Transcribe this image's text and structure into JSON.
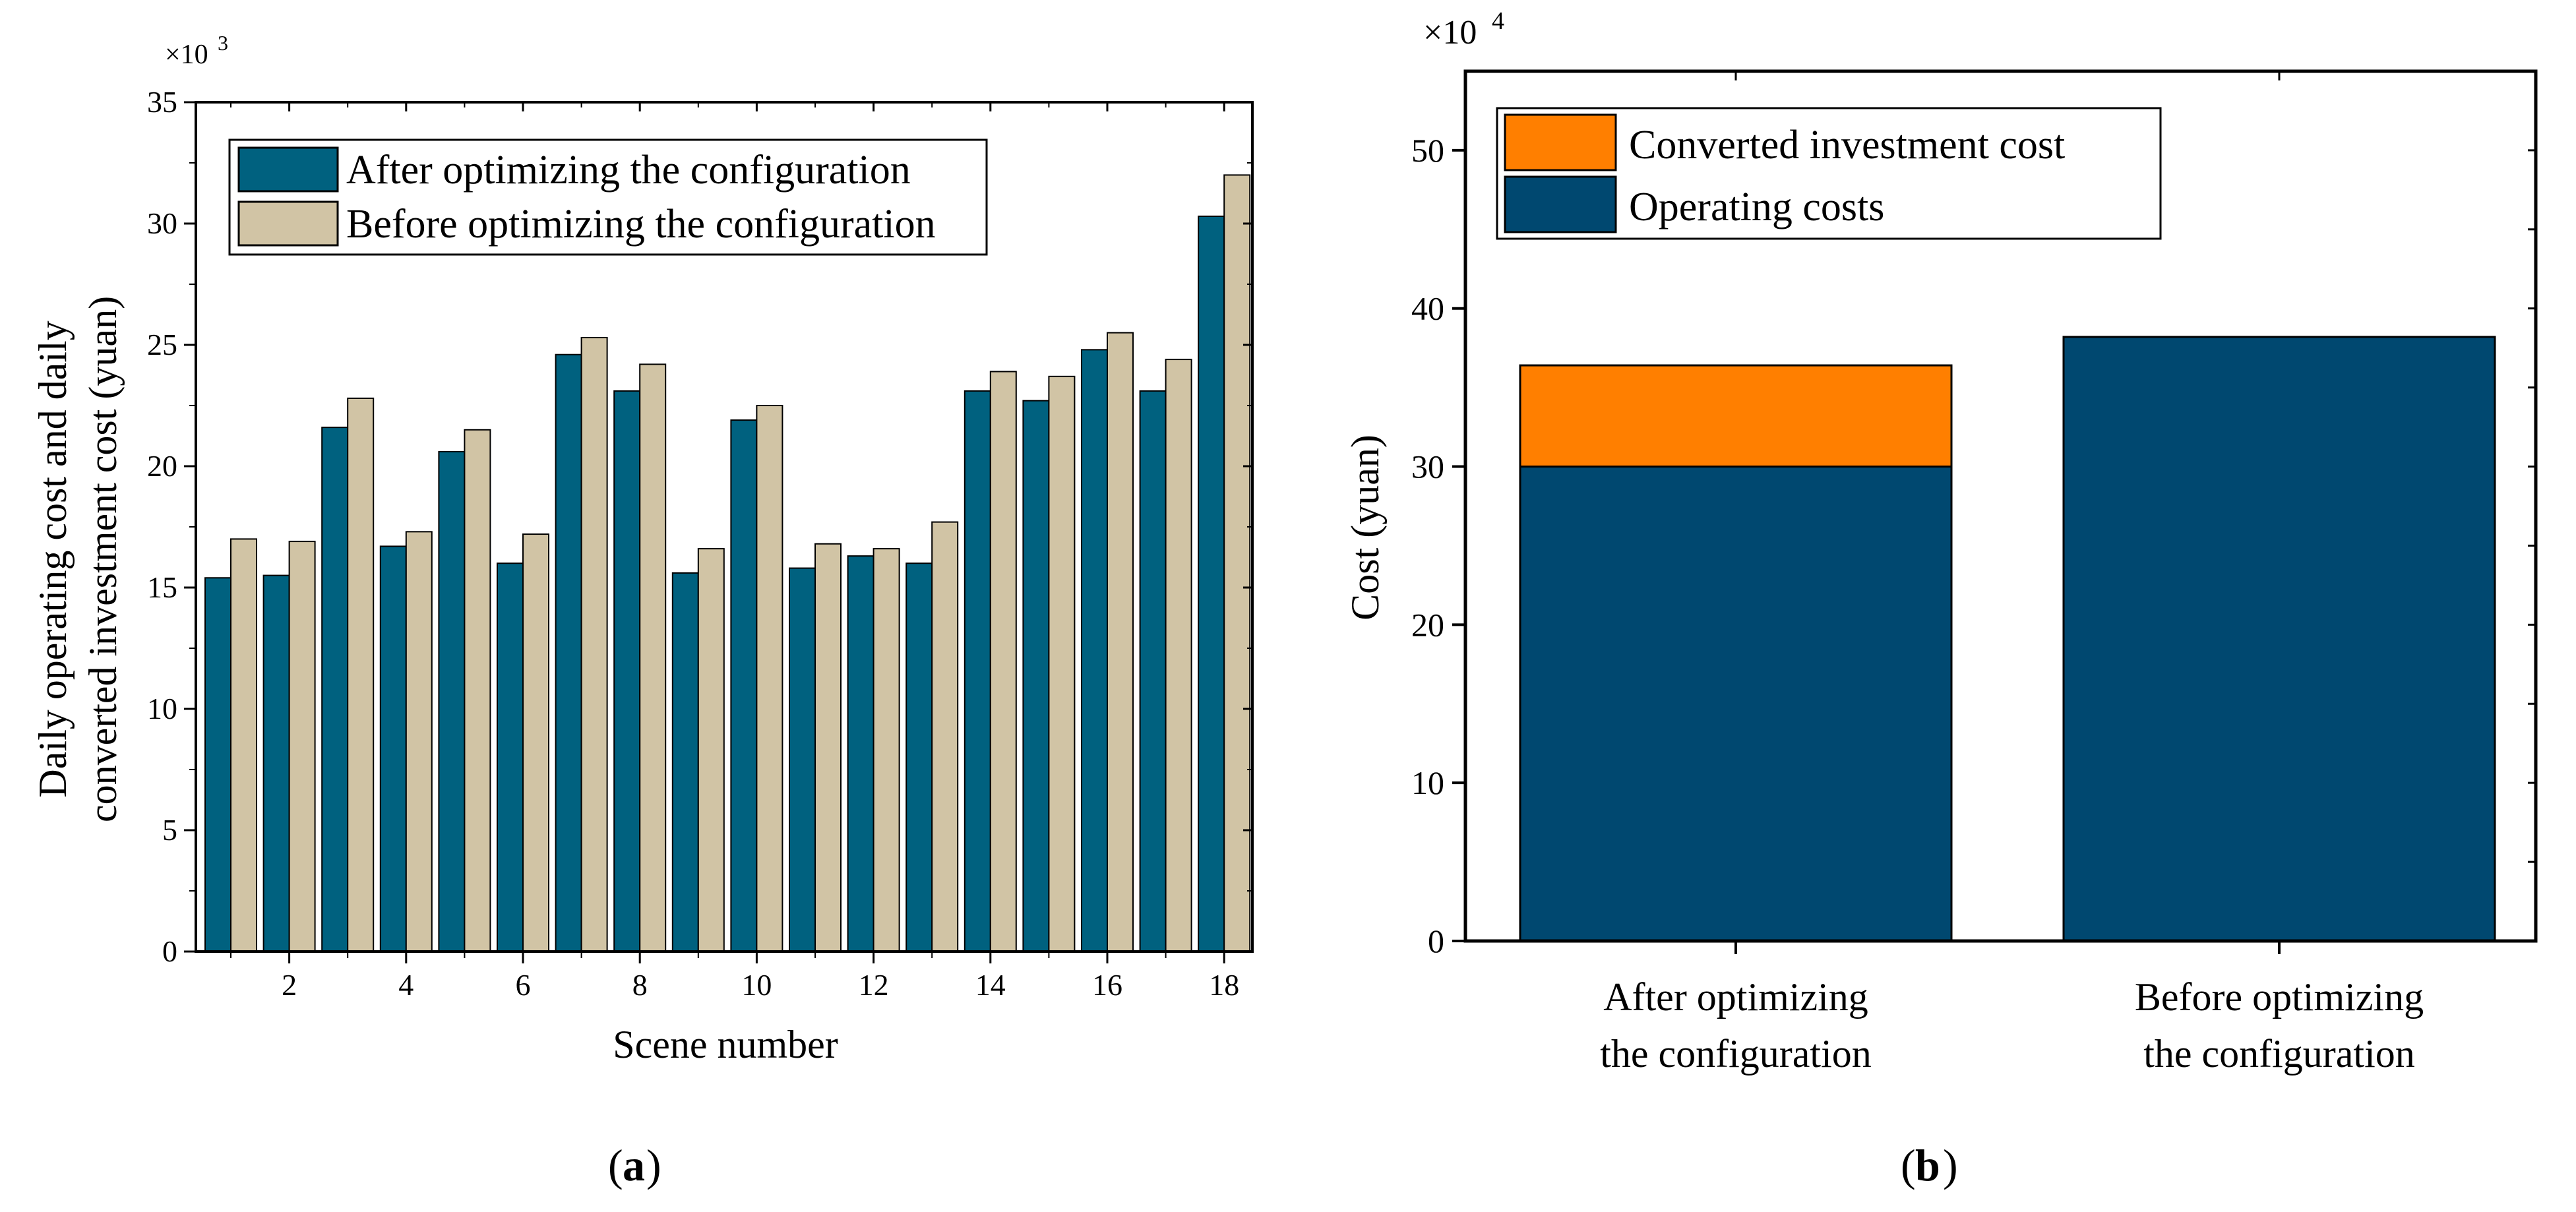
{
  "colors": {
    "after_a": "#00617f",
    "before_a": "#d1c4a5",
    "operating": "#004870",
    "investment": "#ff7f00"
  },
  "chart_data": [
    {
      "type": "bar",
      "panel_label": "a",
      "categories": [
        1,
        2,
        3,
        4,
        5,
        6,
        7,
        8,
        9,
        10,
        11,
        12,
        13,
        14,
        15,
        16,
        17,
        18
      ],
      "series": [
        {
          "name": "After optimizing the configuration",
          "values": [
            15.4,
            15.5,
            21.6,
            16.7,
            20.6,
            16.0,
            24.6,
            23.1,
            15.6,
            21.9,
            15.8,
            16.3,
            16.0,
            23.1,
            22.7,
            24.8,
            23.1,
            30.3
          ]
        },
        {
          "name": "Before optimizing the configuration",
          "values": [
            17.0,
            16.9,
            22.8,
            17.3,
            21.5,
            17.2,
            25.3,
            24.2,
            16.6,
            22.5,
            16.8,
            16.6,
            17.7,
            23.9,
            23.7,
            25.5,
            24.4,
            32.0
          ]
        }
      ],
      "xlabel": "Scene number",
      "ylabel_lines": [
        "Daily operating cost and daily",
        "converted investment cost (yuan)"
      ],
      "ylim": [
        0,
        35
      ],
      "yticks": [
        0,
        5,
        10,
        15,
        20,
        25,
        30,
        35
      ],
      "xticks": [
        2,
        4,
        6,
        8,
        10,
        12,
        14,
        16,
        18
      ],
      "multiplier_base": "×10",
      "multiplier_exp": "3",
      "legend": "top-left"
    },
    {
      "type": "bar",
      "stacked": true,
      "panel_label": "b",
      "category_lines": [
        [
          "After optimizing",
          "the configuration"
        ],
        [
          "Before optimizing",
          "the configuration"
        ]
      ],
      "series": [
        {
          "name": "Operating costs",
          "values": [
            30.0,
            38.2
          ]
        },
        {
          "name": "Converted investment cost",
          "values": [
            6.4,
            0
          ]
        }
      ],
      "ylabel": "Cost (yuan)",
      "ylim": [
        0,
        55
      ],
      "yticks": [
        0,
        10,
        20,
        30,
        40,
        50
      ],
      "multiplier_base": "×10",
      "multiplier_exp": "4",
      "legend": "top-left"
    }
  ]
}
